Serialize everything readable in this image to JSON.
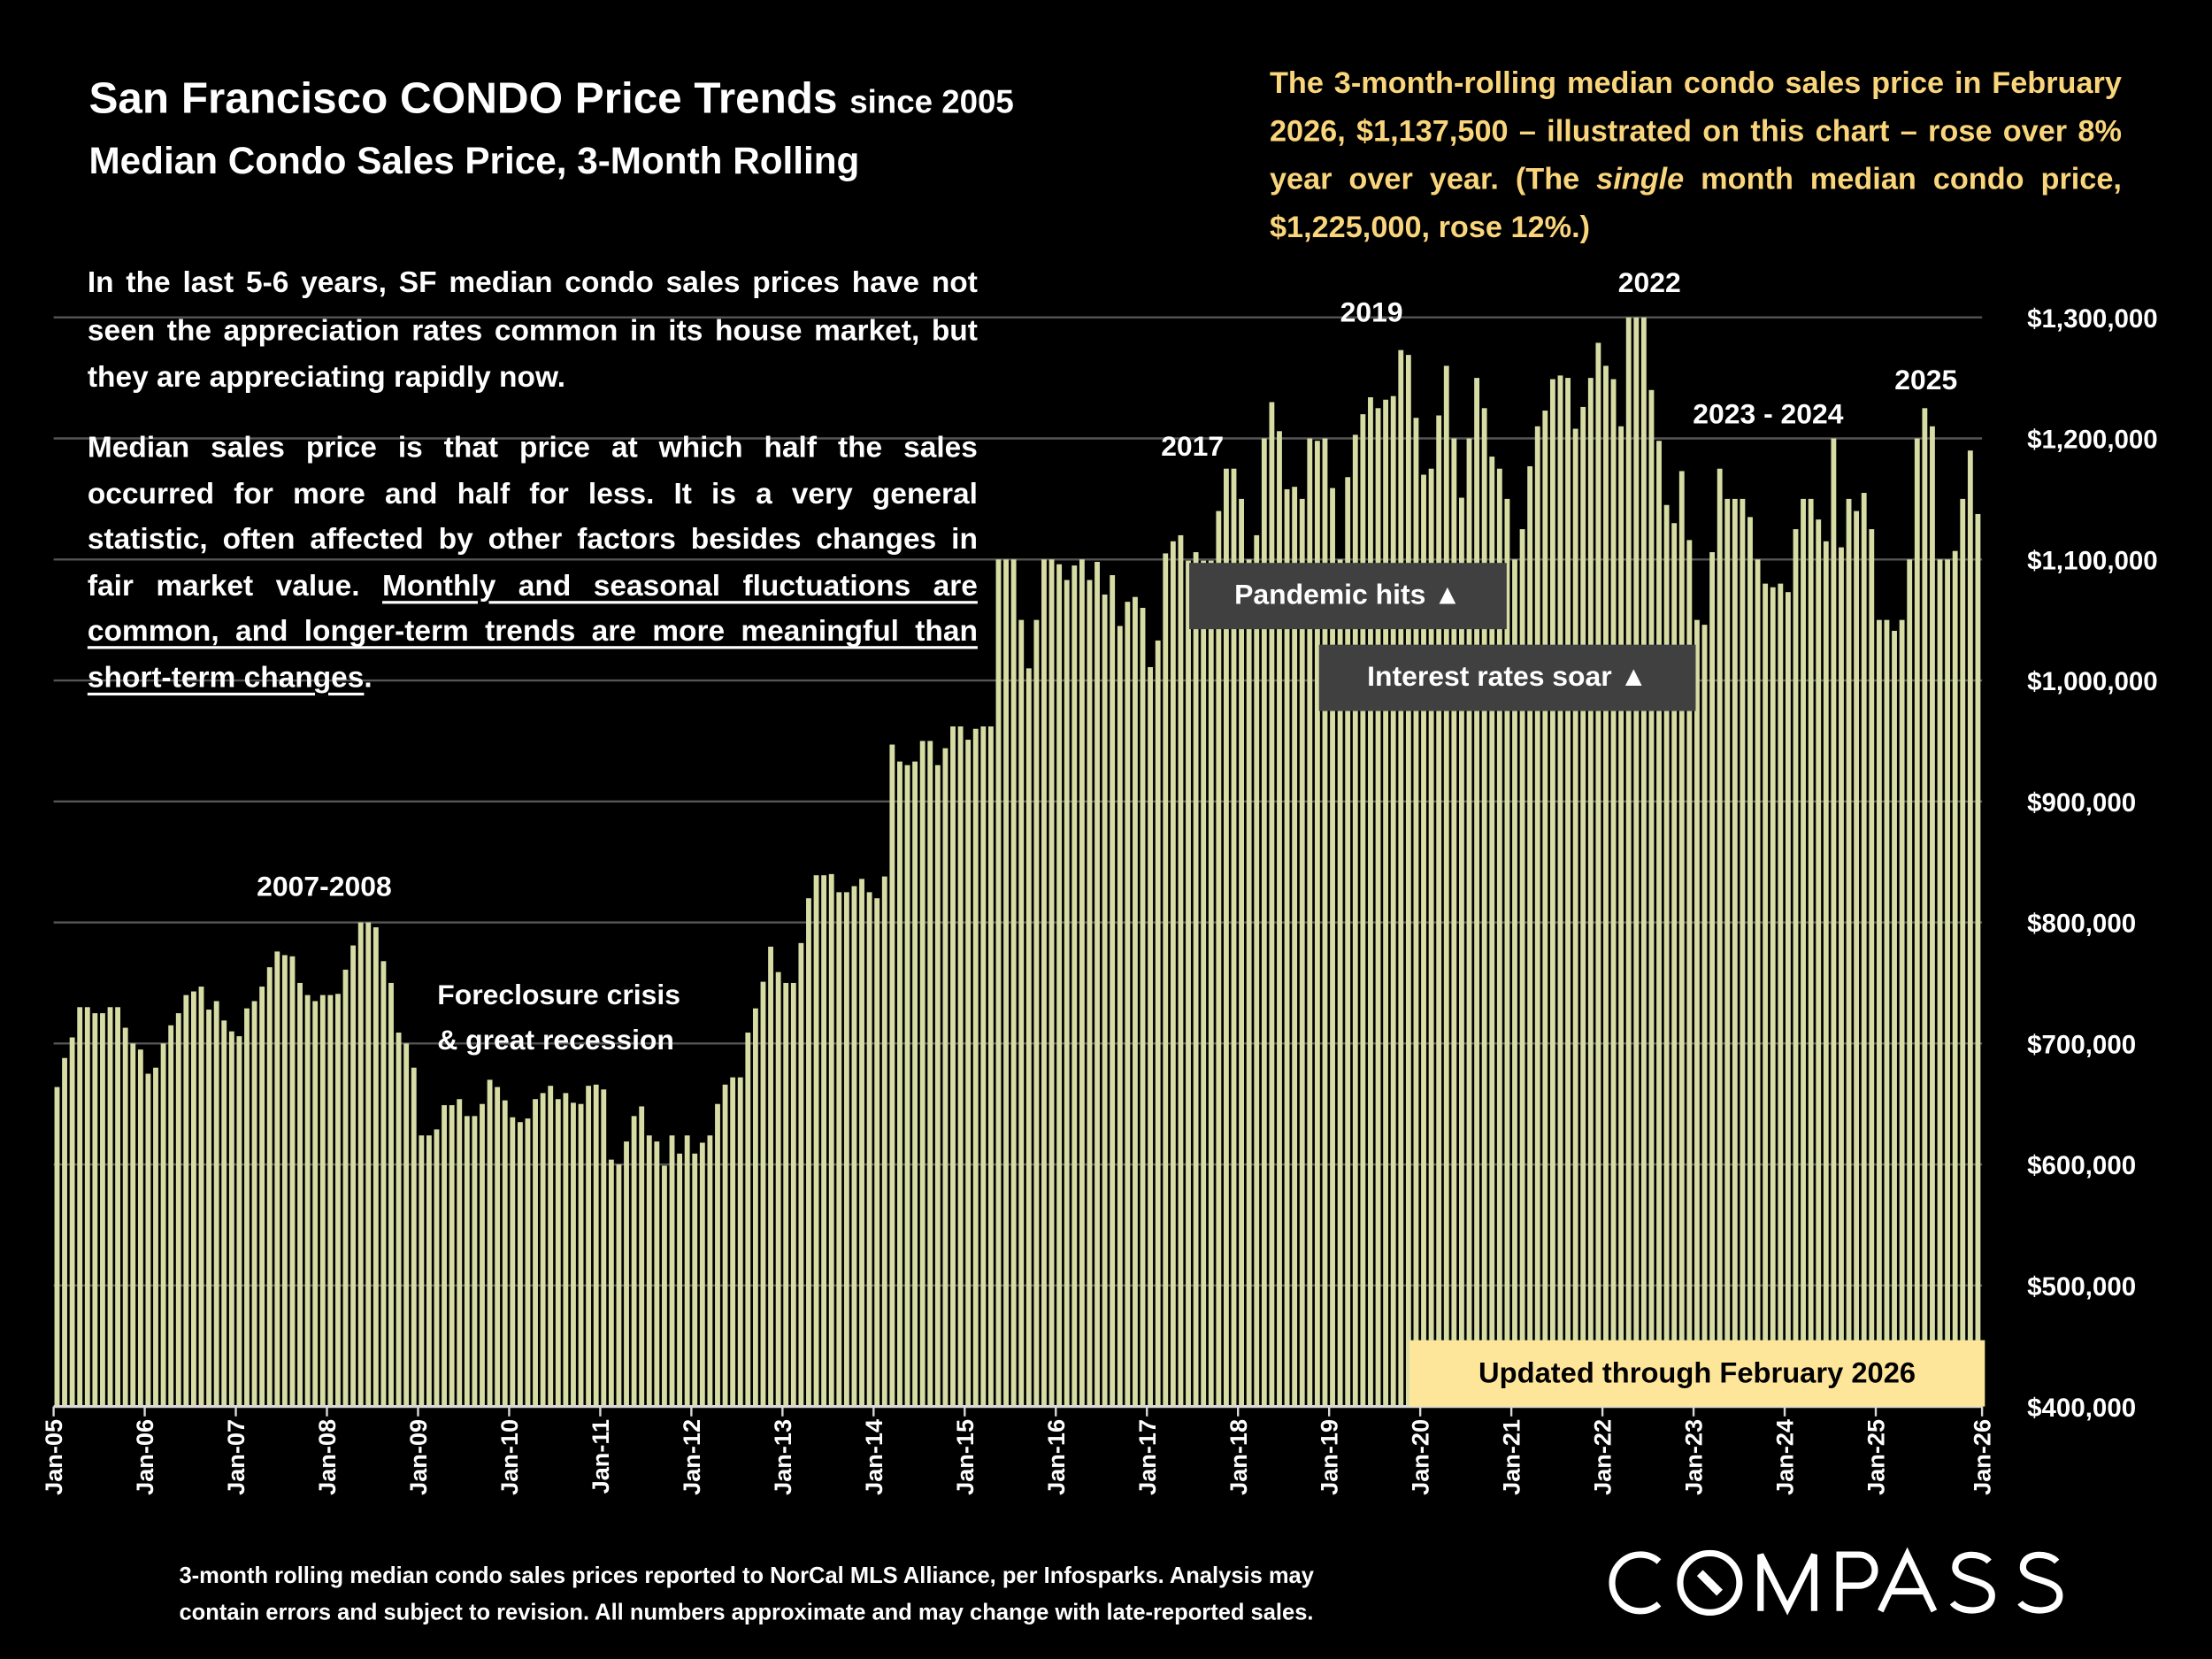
{
  "header": {
    "title": "San Francisco CONDO Price Trends",
    "title_suffix": "since 2005",
    "subtitle": "Median Condo Sales Price, 3-Month Rolling"
  },
  "callout": {
    "text_main": "The 3-month-rolling median condo sales price in February 2026, $1,137,500 – illustrated on this chart – rose over 8% year over year. (The ",
    "text_italic": "single",
    "text_end": " month median condo price, $1,225,000, rose 12%.)"
  },
  "intro": {
    "p1": "In the last 5-6 years, SF median condo sales prices have not seen the appreciation rates common in its house market, but they are appreciating rapidly now.",
    "p2_plain": "Median sales price is that price at which half the sales occurred for more and half for less. It is a very general statistic, often affected by other factors besides changes in fair market value. ",
    "p2_underlined": "Monthly and seasonal fluctuations are common, and longer-term trends are more meaningful than short-term changes",
    "p2_end": "."
  },
  "annotations": {
    "a2007": "2007-2008",
    "foreclosure_1": "Foreclosure crisis",
    "foreclosure_2": "& great recession",
    "a2017": "2017",
    "a2019": "2019",
    "a2022": "2022",
    "a2023": "2023 - 2024",
    "a2025": "2025",
    "pandemic": "Pandemic hits ▲",
    "rates": "Interest rates soar ▲",
    "updated": "Updated through February 2026"
  },
  "footnote": {
    "line1": "3-month rolling median condo sales prices reported to NorCal MLS Alliance, per Infosparks. Analysis may",
    "line2": "contain errors and subject to revision. All numbers approximate and may change with late-reported sales."
  },
  "logo": {
    "text": "COMPASS"
  },
  "colors": {
    "bar": "#d6dca4",
    "callout_text": "#f9d57b",
    "updated_box": "#fde59a",
    "label_box": "#404040",
    "background": "#000000",
    "gridline": "#555555"
  },
  "chart_data": {
    "type": "bar",
    "ylim": [
      400000,
      1300000
    ],
    "y_ticks": [
      400000,
      500000,
      600000,
      700000,
      800000,
      900000,
      1000000,
      1100000,
      1200000,
      1300000
    ],
    "y_tick_labels": [
      "$400,000",
      "$500,000",
      "$600,000",
      "$700,000",
      "$800,000",
      "$900,000",
      "$1,000,000",
      "$1,100,000",
      "$1,200,000",
      "$1,300,000"
    ],
    "x_tick_labels": [
      "Jan-05",
      "Jan-06",
      "Jan-07",
      "Jan-08",
      "Jan-09",
      "Jan-10",
      "Jan-11",
      "Jan-12",
      "Jan-13",
      "Jan-14",
      "Jan-15",
      "Jan-16",
      "Jan-17",
      "Jan-18",
      "Jan-19",
      "Jan-20",
      "Jan-21",
      "Jan-22",
      "Jan-23",
      "Jan-24",
      "Jan-25",
      "Jan-26"
    ],
    "grid": true,
    "frequency": "monthly",
    "series_by_year": [
      {
        "year": 2005,
        "values": [
          664000,
          688000,
          705000,
          730000,
          730000,
          725000,
          725000,
          730000,
          730000,
          713000,
          700000,
          695000
        ]
      },
      {
        "year": 2006,
        "values": [
          675000,
          680000,
          700000,
          715000,
          725000,
          740000,
          743000,
          747000,
          728000,
          735000,
          719000,
          710000
        ]
      },
      {
        "year": 2007,
        "values": [
          706000,
          729000,
          735000,
          747000,
          763000,
          776000,
          773000,
          772000,
          750000,
          740000,
          735000,
          740000
        ]
      },
      {
        "year": 2008,
        "values": [
          740000,
          741000,
          761000,
          781000,
          800000,
          800000,
          796000,
          768000,
          750000,
          709000,
          700000,
          680000
        ]
      },
      {
        "year": 2009,
        "values": [
          624000,
          624000,
          629000,
          649000,
          649000,
          654000,
          640000,
          640000,
          650000,
          670000,
          664000,
          653000
        ]
      },
      {
        "year": 2010,
        "values": [
          639000,
          635000,
          638000,
          654000,
          659000,
          665000,
          654000,
          659000,
          651000,
          650000,
          665000,
          666000
        ]
      },
      {
        "year": 2011,
        "values": [
          662000,
          604000,
          600000,
          619000,
          640000,
          648000,
          624000,
          619000,
          599000,
          624000,
          609000,
          624000
        ]
      },
      {
        "year": 2012,
        "values": [
          609000,
          618000,
          624000,
          650000,
          666000,
          672000,
          672000,
          709000,
          729000,
          751000,
          780000,
          759000
        ]
      },
      {
        "year": 2013,
        "values": [
          750000,
          750000,
          783000,
          820000,
          839000,
          839000,
          840000,
          825000,
          825000,
          830000,
          836000,
          825000
        ]
      },
      {
        "year": 2014,
        "values": [
          820000,
          838000,
          947000,
          933000,
          930000,
          933000,
          950000,
          950000,
          930000,
          944000,
          962000,
          962000
        ]
      },
      {
        "year": 2015,
        "values": [
          951000,
          960000,
          962000,
          962000,
          1100000,
          1100000,
          1100000,
          1050000,
          1010000,
          1050000,
          1100000,
          1100000
        ]
      },
      {
        "year": 2016,
        "values": [
          1096000,
          1083000,
          1095000,
          1100000,
          1083000,
          1098000,
          1071000,
          1087000,
          1045000,
          1065000,
          1069000,
          1060000
        ]
      },
      {
        "year": 2017,
        "values": [
          1011000,
          1033000,
          1105000,
          1115000,
          1120000,
          1099000,
          1106000,
          1099000,
          1099000,
          1140000,
          1175000,
          1175000
        ]
      },
      {
        "year": 2018,
        "values": [
          1150000,
          1100000,
          1120000,
          1200000,
          1230000,
          1206000,
          1158000,
          1160000,
          1150000,
          1200000,
          1198000,
          1200000
        ]
      },
      {
        "year": 2019,
        "values": [
          1159000,
          1100000,
          1168000,
          1203000,
          1220000,
          1234000,
          1225000,
          1232000,
          1235000,
          1273000,
          1269000,
          1217000
        ]
      },
      {
        "year": 2020,
        "values": [
          1170000,
          1175000,
          1219000,
          1260000,
          1200000,
          1151000,
          1200000,
          1250000,
          1225000,
          1185000,
          1175000,
          1150000
        ]
      },
      {
        "year": 2021,
        "values": [
          1100000,
          1125000,
          1177000,
          1210000,
          1223000,
          1249000,
          1252000,
          1250000,
          1208000,
          1226000,
          1250000,
          1279000
        ]
      },
      {
        "year": 2022,
        "values": [
          1260000,
          1249000,
          1210000,
          1300000,
          1300000,
          1300000,
          1240000,
          1198000,
          1145000,
          1130000,
          1173000,
          1116000
        ]
      },
      {
        "year": 2023,
        "values": [
          1050000,
          1046000,
          1106000,
          1175000,
          1150000,
          1150000,
          1150000,
          1135000,
          1100000,
          1080000,
          1077000,
          1080000
        ]
      },
      {
        "year": 2024,
        "values": [
          1073000,
          1125000,
          1150000,
          1150000,
          1133000,
          1115000,
          1200000,
          1110000,
          1150000,
          1140000,
          1155000,
          1125000
        ]
      },
      {
        "year": 2025,
        "values": [
          1050000,
          1050000,
          1041000,
          1050000,
          1100000,
          1200000,
          1225000,
          1210000,
          1100000,
          1100000,
          1107000,
          1150000
        ]
      },
      {
        "year": 2026,
        "values": [
          1190000,
          1137500
        ]
      }
    ]
  }
}
